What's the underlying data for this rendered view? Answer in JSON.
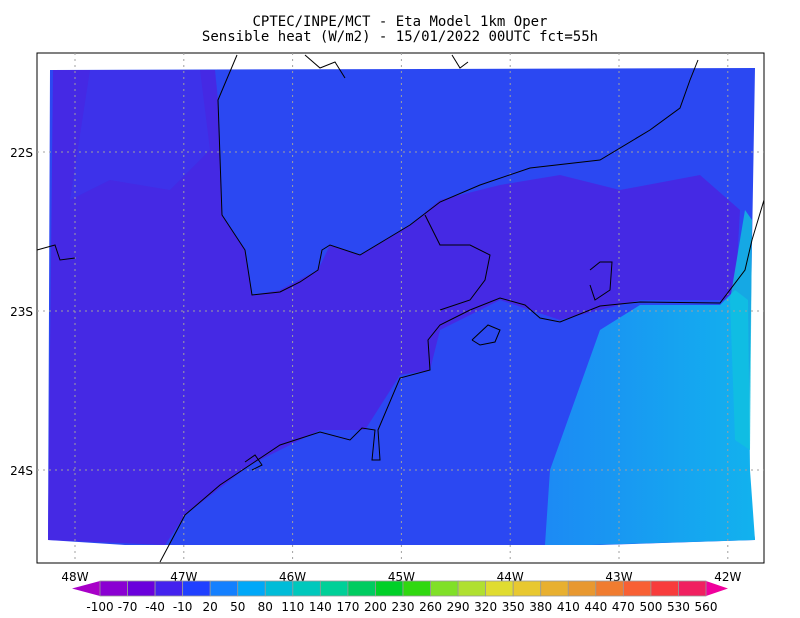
{
  "title": {
    "line1": "CPTEC/INPE/MCT -  Eta Model 1km Oper",
    "line2": "Sensible heat (W/m2) - 15/01/2022 00UTC fct=55h"
  },
  "map": {
    "lon_ticks": [
      "48W",
      "47W",
      "46W",
      "45W",
      "44W",
      "43W",
      "42W"
    ],
    "lat_ticks": [
      "22S",
      "23S",
      "24S"
    ],
    "colors": {
      "land_low": "#4a24e2",
      "field": "#2b48f2",
      "ocean_mid": "#1c8af4",
      "ocean_high": "#12b2ee",
      "coast": "#000000",
      "grid": "#a0a0a0"
    }
  },
  "colorbar": {
    "levels": [
      "-100",
      "-70",
      "-40",
      "-10",
      "20",
      "50",
      "80",
      "110",
      "140",
      "170",
      "200",
      "230",
      "260",
      "290",
      "320",
      "350",
      "380",
      "410",
      "440",
      "470",
      "500",
      "530",
      "560"
    ],
    "colors": [
      "#8a00d2",
      "#6a00dc",
      "#4422ee",
      "#2040ff",
      "#1480ff",
      "#00a8f8",
      "#00bcd8",
      "#00c8bc",
      "#00d098",
      "#00cc60",
      "#00d028",
      "#30d810",
      "#80e028",
      "#b0e030",
      "#e0dc30",
      "#e8c830",
      "#e8b030",
      "#e89830",
      "#f07c30",
      "#f86034",
      "#f83c3c",
      "#f02060"
    ],
    "under_color": "#a800c8",
    "over_color": "#f0009c"
  }
}
